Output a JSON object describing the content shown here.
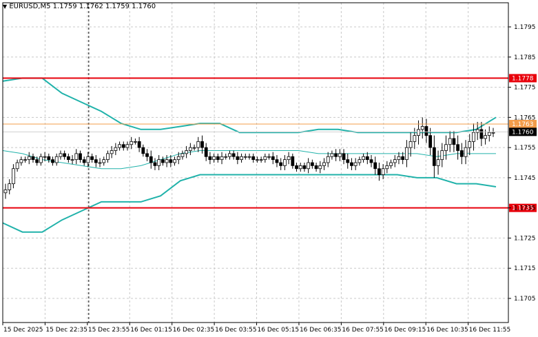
{
  "header": {
    "symbol": "EURUSD,M5",
    "ohlc": "1.1759 1.1762 1.1759 1.1760",
    "menu_icon": "triangle-down-icon"
  },
  "chart_data": {
    "type": "candlestick",
    "title": "EURUSD,M5",
    "ylim": [
      1.1697,
      1.1803
    ],
    "y_ticks": [
      "1.1795",
      "1.1785",
      "1.1775",
      "1.1765",
      "1.1755",
      "1.1745",
      "1.1735",
      "1.1725",
      "1.1715",
      "1.1705"
    ],
    "x_ticks": [
      "15 Dec 2025",
      "15 Dec 22:35",
      "15 Dec 23:55",
      "16 Dec 01:15",
      "16 Dec 02:35",
      "16 Dec 03:55",
      "16 Dec 05:15",
      "16 Dec 06:35",
      "16 Dec 07:55",
      "16 Dec 09:15",
      "16 Dec 10:35",
      "16 Dec 11:55"
    ],
    "levels": [
      {
        "label": "1.1778",
        "value": 1.1778,
        "color": "#e8000b"
      },
      {
        "label": "1.1735",
        "value": 1.1735,
        "color": "#e8000b"
      }
    ],
    "ask_line": {
      "label": "1.1763",
      "value": 1.17628,
      "color": "#f39c4a"
    },
    "bid_line": {
      "label": "1.1760",
      "value": 1.17602,
      "color": "#000000"
    },
    "period_separator_index": 19,
    "bollinger_upper": [
      1.1777,
      1.1778,
      1.1778,
      1.1773,
      1.177,
      1.1767,
      1.1763,
      1.1761,
      1.1761,
      1.1762,
      1.1763,
      1.1763,
      1.176,
      1.176,
      1.176,
      1.176,
      1.1761,
      1.1761,
      1.176,
      1.176,
      1.176,
      1.176,
      1.176,
      1.176,
      1.1761,
      1.1765
    ],
    "bollinger_mid": [
      1.1754,
      1.1753,
      1.1751,
      1.175,
      1.1749,
      1.1748,
      1.1748,
      1.1749,
      1.1751,
      1.1753,
      1.1754,
      1.1754,
      1.1754,
      1.1754,
      1.1754,
      1.1754,
      1.1753,
      1.1753,
      1.1753,
      1.1753,
      1.1753,
      1.1753,
      1.1752,
      1.1753,
      1.1753,
      1.1753
    ],
    "bollinger_lower": [
      1.173,
      1.1727,
      1.1727,
      1.1731,
      1.1734,
      1.1737,
      1.1737,
      1.1737,
      1.1739,
      1.1744,
      1.1746,
      1.1746,
      1.1746,
      1.1746,
      1.1746,
      1.1746,
      1.1746,
      1.1746,
      1.1746,
      1.1746,
      1.1746,
      1.1745,
      1.1745,
      1.1743,
      1.1743,
      1.1742
    ],
    "candle_close": [
      1.1741,
      1.1743,
      1.1748,
      1.175,
      1.1751,
      1.1751,
      1.1752,
      1.1751,
      1.175,
      1.1752,
      1.1752,
      1.1751,
      1.175,
      1.1752,
      1.1753,
      1.1752,
      1.1751,
      1.1751,
      1.1753,
      1.1751,
      1.175,
      1.1752,
      1.1751,
      1.175,
      1.175,
      1.1751,
      1.1753,
      1.1754,
      1.1755,
      1.1756,
      1.1755,
      1.1756,
      1.1757,
      1.1757,
      1.1755,
      1.1753,
      1.1752,
      1.175,
      1.1749,
      1.1751,
      1.175,
      1.1751,
      1.175,
      1.1751,
      1.1752,
      1.1753,
      1.1754,
      1.1755,
      1.1755,
      1.1757,
      1.1755,
      1.1752,
      1.1751,
      1.1752,
      1.1751,
      1.1752,
      1.1752,
      1.1753,
      1.1752,
      1.1751,
      1.1752,
      1.1752,
      1.1752,
      1.1751,
      1.1751,
      1.1751,
      1.1752,
      1.1752,
      1.1751,
      1.175,
      1.1749,
      1.1751,
      1.1752,
      1.1749,
      1.1748,
      1.1749,
      1.1748,
      1.175,
      1.1749,
      1.1748,
      1.1749,
      1.175,
      1.1752,
      1.1753,
      1.1752,
      1.1753,
      1.1751,
      1.175,
      1.1749,
      1.175,
      1.1751,
      1.1752,
      1.1751,
      1.175,
      1.1748,
      1.1746,
      1.1748,
      1.1749,
      1.175,
      1.1751,
      1.1752,
      1.1751,
      1.1755,
      1.1757,
      1.1759,
      1.1761,
      1.1762,
      1.1759,
      1.1755,
      1.1749,
      1.1751,
      1.1754,
      1.1756,
      1.1758,
      1.1756,
      1.1754,
      1.1752,
      1.1755,
      1.1757,
      1.176,
      1.1761,
      1.1758,
      1.1759,
      1.176,
      1.176
    ],
    "candle_range": [
      0.0004,
      0.0003,
      0.0003,
      0.0002,
      0.0002,
      0.0002,
      0.0003,
      0.0002,
      0.0002,
      0.0002,
      0.0003,
      0.0002,
      0.0002,
      0.0002,
      0.0002,
      0.0002,
      0.0002,
      0.0003,
      0.0003,
      0.0002,
      0.0002,
      0.0003,
      0.0002,
      0.0003,
      0.0003,
      0.0002,
      0.0002,
      0.0003,
      0.0003,
      0.0002,
      0.0002,
      0.0002,
      0.0003,
      0.0002,
      0.0003,
      0.0002,
      0.0003,
      0.0004,
      0.0003,
      0.0003,
      0.0002,
      0.0003,
      0.0003,
      0.0002,
      0.0003,
      0.0002,
      0.0003,
      0.0003,
      0.0002,
      0.0003,
      0.0004,
      0.0003,
      0.0003,
      0.0002,
      0.0002,
      0.0003,
      0.0002,
      0.0002,
      0.0002,
      0.0003,
      0.0002,
      0.0002,
      0.0002,
      0.0002,
      0.0002,
      0.0002,
      0.0002,
      0.0002,
      0.0003,
      0.0003,
      0.0003,
      0.0003,
      0.0003,
      0.0002,
      0.0002,
      0.0002,
      0.0002,
      0.0003,
      0.0002,
      0.0002,
      0.0003,
      0.0003,
      0.0003,
      0.0002,
      0.0003,
      0.0003,
      0.0003,
      0.0004,
      0.0003,
      0.0003,
      0.0002,
      0.0002,
      0.0003,
      0.0003,
      0.0004,
      0.0004,
      0.0003,
      0.0003,
      0.0002,
      0.0003,
      0.0003,
      0.0003,
      0.0005,
      0.0006,
      0.0005,
      0.0006,
      0.0006,
      0.0005,
      0.0005,
      0.0008,
      0.0006,
      0.0005,
      0.0006,
      0.0005,
      0.0005,
      0.0006,
      0.0005,
      0.0005,
      0.0005,
      0.0006,
      0.0005,
      0.0005,
      0.0004,
      0.0004,
      0.0003
    ]
  }
}
